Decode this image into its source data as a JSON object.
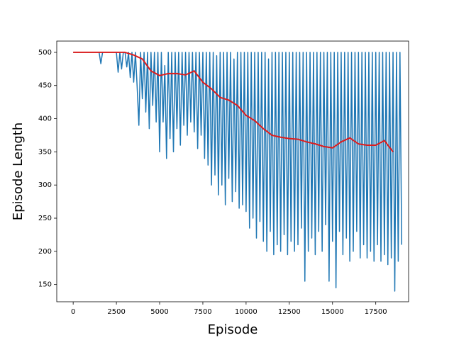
{
  "chart_data": {
    "type": "line",
    "x_label": "Episode",
    "y_label": "Episode Length",
    "xlim": [
      -950,
      19400
    ],
    "ylim": [
      124,
      517
    ],
    "xticks": [
      0,
      2500,
      5000,
      7500,
      10000,
      12500,
      15000,
      17500
    ],
    "yticks": [
      150,
      200,
      250,
      300,
      350,
      400,
      450,
      500
    ],
    "grid": false,
    "series": [
      {
        "color": "#1f77b4",
        "x": [
          0,
          100,
          200,
          300,
          400,
          500,
          600,
          700,
          800,
          900,
          1000,
          1100,
          1200,
          1300,
          1400,
          1500,
          1600,
          1700,
          1800,
          1900,
          2000,
          2100,
          2200,
          2300,
          2400,
          2500,
          2600,
          2700,
          2800,
          2900,
          3000,
          3100,
          3200,
          3300,
          3400,
          3500,
          3600,
          3700,
          3800,
          3900,
          4000,
          4100,
          4200,
          4300,
          4400,
          4500,
          4600,
          4700,
          4800,
          4900,
          5000,
          5100,
          5200,
          5300,
          5400,
          5500,
          5600,
          5700,
          5800,
          5900,
          6000,
          6100,
          6200,
          6300,
          6400,
          6500,
          6600,
          6700,
          6800,
          6900,
          7000,
          7100,
          7200,
          7300,
          7400,
          7500,
          7600,
          7700,
          7800,
          7900,
          8000,
          8100,
          8200,
          8300,
          8400,
          8500,
          8600,
          8700,
          8800,
          8900,
          9000,
          9100,
          9200,
          9300,
          9400,
          9500,
          9600,
          9700,
          9800,
          9900,
          10000,
          10100,
          10200,
          10300,
          10400,
          10500,
          10600,
          10700,
          10800,
          10900,
          11000,
          11100,
          11200,
          11300,
          11400,
          11500,
          11600,
          11700,
          11800,
          11900,
          12000,
          12100,
          12200,
          12300,
          12400,
          12500,
          12600,
          12700,
          12800,
          12900,
          13000,
          13100,
          13200,
          13300,
          13400,
          13500,
          13600,
          13700,
          13800,
          13900,
          14000,
          14100,
          14200,
          14300,
          14400,
          14500,
          14600,
          14700,
          14800,
          14900,
          15000,
          15100,
          15200,
          15300,
          15400,
          15500,
          15600,
          15700,
          15800,
          15900,
          16000,
          16100,
          16200,
          16300,
          16400,
          16500,
          16600,
          16700,
          16800,
          16900,
          17000,
          17100,
          17200,
          17300,
          17400,
          17500,
          17600,
          17700,
          17800,
          17900,
          18000,
          18100,
          18200,
          18300,
          18400,
          18500,
          18600,
          18700,
          18800,
          18900,
          19000
        ],
        "values": [
          500,
          500,
          500,
          500,
          500,
          500,
          500,
          500,
          500,
          500,
          500,
          500,
          500,
          500,
          500,
          500,
          483,
          500,
          500,
          500,
          500,
          500,
          500,
          500,
          500,
          500,
          470,
          500,
          475,
          500,
          500,
          478,
          500,
          462,
          500,
          455,
          500,
          448,
          390,
          500,
          430,
          500,
          410,
          500,
          385,
          500,
          420,
          500,
          395,
          500,
          350,
          500,
          395,
          480,
          340,
          500,
          370,
          500,
          350,
          500,
          385,
          500,
          360,
          500,
          390,
          500,
          375,
          500,
          395,
          500,
          380,
          500,
          355,
          500,
          375,
          500,
          340,
          500,
          330,
          500,
          300,
          500,
          315,
          495,
          285,
          500,
          300,
          500,
          270,
          500,
          310,
          500,
          275,
          490,
          290,
          500,
          265,
          500,
          270,
          500,
          260,
          500,
          235,
          500,
          250,
          500,
          220,
          500,
          245,
          500,
          215,
          500,
          200,
          490,
          230,
          500,
          195,
          500,
          210,
          500,
          200,
          500,
          225,
          500,
          195,
          500,
          215,
          500,
          200,
          500,
          210,
          500,
          235,
          500,
          155,
          500,
          200,
          500,
          220,
          500,
          195,
          500,
          230,
          500,
          200,
          500,
          240,
          500,
          155,
          500,
          215,
          500,
          145,
          500,
          230,
          500,
          195,
          500,
          220,
          500,
          185,
          500,
          200,
          500,
          230,
          500,
          190,
          500,
          210,
          500,
          190,
          500,
          200,
          500,
          185,
          500,
          210,
          500,
          185,
          500,
          195,
          500,
          180,
          500,
          190,
          500,
          140,
          500,
          185,
          500,
          210
        ]
      },
      {
        "color": "#dd1c1c",
        "x": [
          0,
          500,
          1000,
          1500,
          2000,
          2500,
          3000,
          3500,
          4000,
          4500,
          5000,
          5500,
          6000,
          6500,
          7000,
          7500,
          8000,
          8500,
          9000,
          9500,
          10000,
          10500,
          11000,
          11500,
          12000,
          12500,
          13000,
          13500,
          14000,
          14500,
          15000,
          15500,
          16000,
          16500,
          17000,
          17500,
          18000,
          18500
        ],
        "values": [
          500,
          500,
          500,
          500,
          500,
          500,
          500,
          496,
          490,
          472,
          465,
          468,
          468,
          466,
          472,
          455,
          445,
          432,
          428,
          420,
          405,
          397,
          385,
          375,
          372,
          370,
          369,
          365,
          362,
          358,
          356,
          365,
          371,
          362,
          360,
          360,
          367,
          350
        ]
      }
    ]
  }
}
